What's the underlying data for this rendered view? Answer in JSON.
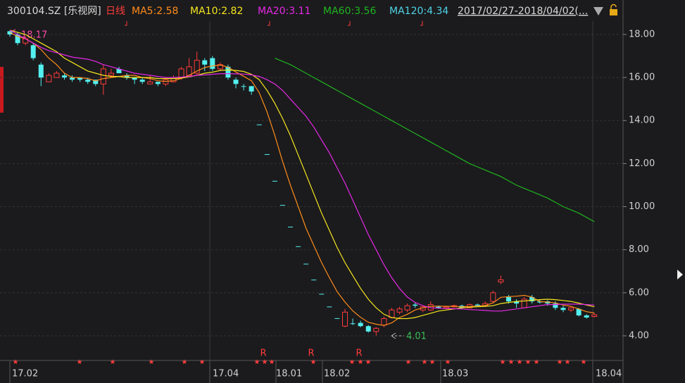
{
  "header": {
    "symbol": "300104.SZ [乐视网]",
    "period": "日线",
    "range": "2017/02/27-2018/04/02(..."
  },
  "chart_data": {
    "type": "candlestick",
    "open": [
      18.15,
      18.0,
      17.6,
      17.5,
      16.6,
      15.8,
      16.0,
      16.1,
      16.0,
      16.0,
      15.9,
      15.9,
      15.7,
      16.1,
      16.4,
      16.1,
      16.0,
      15.9,
      15.7,
      15.8,
      15.7,
      15.8,
      16.0,
      16.1,
      16.2,
      16.8,
      16.9,
      16.4,
      16.5,
      15.9,
      15.6,
      15.6,
      13.82,
      12.44,
      11.2,
      10.08,
      9.07,
      8.16,
      7.35,
      6.61,
      5.95,
      5.36,
      4.82,
      4.45,
      4.58,
      4.6,
      4.45,
      4.2,
      4.5,
      4.85,
      5.1,
      5.2,
      5.45,
      5.2,
      5.2,
      5.35,
      5.3,
      5.35,
      5.4,
      5.3,
      5.45,
      5.4,
      5.6,
      6.5,
      5.8,
      5.6,
      5.3,
      5.8,
      5.6,
      5.6,
      5.5,
      5.3,
      5.2,
      5.25,
      4.95,
      4.9
    ],
    "high": [
      18.17,
      18.1,
      17.9,
      17.6,
      16.7,
      16.2,
      16.3,
      16.2,
      16.1,
      16.0,
      16.0,
      15.9,
      16.6,
      16.4,
      16.5,
      16.2,
      16.0,
      16.0,
      16.1,
      15.8,
      16.0,
      16.1,
      16.5,
      16.9,
      17.2,
      16.9,
      17.0,
      16.7,
      16.6,
      16.0,
      15.7,
      15.6,
      13.82,
      12.44,
      11.2,
      10.08,
      9.07,
      8.16,
      7.35,
      6.61,
      5.95,
      5.36,
      4.82,
      5.25,
      4.8,
      4.7,
      4.5,
      4.4,
      4.9,
      5.3,
      5.35,
      5.5,
      5.55,
      5.4,
      5.6,
      5.4,
      5.4,
      5.45,
      5.45,
      5.5,
      5.5,
      5.6,
      6.1,
      6.8,
      5.9,
      5.7,
      5.8,
      5.9,
      5.7,
      5.65,
      5.6,
      5.4,
      5.35,
      5.3,
      5.0,
      5.05
    ],
    "low": [
      17.9,
      17.5,
      17.5,
      16.8,
      15.6,
      15.8,
      16.0,
      15.9,
      15.8,
      15.8,
      15.7,
      15.6,
      15.2,
      16.0,
      16.2,
      15.9,
      15.7,
      15.7,
      15.7,
      15.6,
      15.6,
      15.8,
      15.9,
      16.1,
      16.1,
      16.3,
      16.3,
      16.3,
      15.9,
      15.5,
      15.4,
      15.2,
      13.82,
      12.44,
      11.2,
      10.08,
      9.07,
      8.16,
      7.35,
      6.61,
      5.95,
      5.36,
      4.82,
      4.4,
      4.5,
      4.4,
      4.15,
      4.01,
      4.4,
      4.8,
      5.0,
      5.1,
      5.3,
      5.1,
      5.15,
      5.25,
      5.25,
      5.3,
      5.25,
      5.3,
      5.35,
      5.35,
      5.55,
      6.4,
      5.5,
      5.3,
      5.3,
      5.5,
      5.5,
      5.4,
      5.2,
      5.1,
      5.1,
      4.9,
      4.8,
      4.85
    ],
    "close": [
      18.0,
      17.6,
      17.8,
      16.9,
      16.0,
      16.1,
      16.2,
      16.0,
      15.9,
      15.9,
      15.8,
      15.7,
      16.4,
      16.2,
      16.2,
      16.0,
      15.9,
      15.8,
      15.8,
      15.7,
      15.9,
      16.0,
      16.4,
      16.5,
      16.8,
      16.6,
      16.4,
      16.6,
      16.0,
      15.7,
      15.6,
      15.35,
      13.82,
      12.44,
      11.2,
      10.08,
      9.07,
      8.16,
      7.35,
      6.61,
      5.95,
      5.36,
      4.82,
      5.1,
      4.58,
      4.45,
      4.2,
      4.35,
      4.8,
      5.2,
      5.25,
      5.4,
      5.4,
      5.35,
      5.45,
      5.3,
      5.35,
      5.4,
      5.3,
      5.45,
      5.4,
      5.5,
      6.0,
      6.6,
      5.6,
      5.5,
      5.7,
      5.6,
      5.55,
      5.5,
      5.3,
      5.2,
      5.3,
      4.95,
      4.85,
      4.98
    ],
    "up_color": "#ff3b3b",
    "down_color": "#54f0f0",
    "series": [
      {
        "name": "MA5:2.58",
        "color": "#ff8c1a",
        "values": [
          18.1,
          17.9,
          17.8,
          17.6,
          17.3,
          16.9,
          16.6,
          16.2,
          16.0,
          16.0,
          15.95,
          15.85,
          15.95,
          16.0,
          16.05,
          16.1,
          16.1,
          16.0,
          15.95,
          15.85,
          15.82,
          15.85,
          15.96,
          16.1,
          16.3,
          16.46,
          16.54,
          16.58,
          16.48,
          16.26,
          16.06,
          15.85,
          15.3,
          14.4,
          13.3,
          12.1,
          11.0,
          10.0,
          9.0,
          8.2,
          7.4,
          6.7,
          6.05,
          5.57,
          5.16,
          4.86,
          4.63,
          4.54,
          4.48,
          4.6,
          4.85,
          5.0,
          5.2,
          5.3,
          5.37,
          5.38,
          5.37,
          5.37,
          5.35,
          5.36,
          5.38,
          5.41,
          5.53,
          5.79,
          5.82,
          5.84,
          5.88,
          5.8,
          5.59,
          5.57,
          5.53,
          5.43,
          5.37,
          5.25,
          5.12,
          5.06
        ]
      },
      {
        "name": "MA10:2.82",
        "color": "#f5e61e",
        "values": [
          18.2,
          18.1,
          18.0,
          17.8,
          17.6,
          17.4,
          17.2,
          16.9,
          16.7,
          16.5,
          16.3,
          16.2,
          16.1,
          16.05,
          16.05,
          16.0,
          16.0,
          16.0,
          16.0,
          15.95,
          15.95,
          15.95,
          15.97,
          16.03,
          16.1,
          16.2,
          16.25,
          16.33,
          16.35,
          16.33,
          16.28,
          16.15,
          15.9,
          15.4,
          14.8,
          14.1,
          13.3,
          12.4,
          11.5,
          10.6,
          9.7,
          8.9,
          8.1,
          7.4,
          6.8,
          6.2,
          5.7,
          5.3,
          5.0,
          4.85,
          4.8,
          4.8,
          4.85,
          4.95,
          5.05,
          5.15,
          5.2,
          5.25,
          5.3,
          5.33,
          5.35,
          5.37,
          5.4,
          5.5,
          5.55,
          5.6,
          5.62,
          5.65,
          5.68,
          5.7,
          5.68,
          5.64,
          5.6,
          5.52,
          5.43,
          5.35
        ]
      },
      {
        "name": "MA20:3.11",
        "color": "#e628e6",
        "values": [
          18.2,
          18.0,
          17.8,
          17.6,
          17.4,
          17.25,
          17.15,
          17.05,
          16.95,
          16.9,
          16.85,
          16.75,
          16.6,
          16.5,
          16.4,
          16.3,
          16.2,
          16.15,
          16.1,
          16.05,
          16.0,
          16.0,
          16.02,
          16.05,
          16.1,
          16.12,
          16.15,
          16.18,
          16.18,
          16.17,
          16.16,
          16.12,
          16.05,
          15.9,
          15.7,
          15.4,
          15.0,
          14.6,
          14.2,
          13.7,
          13.1,
          12.5,
          11.8,
          11.1,
          10.3,
          9.5,
          8.7,
          8.0,
          7.3,
          6.7,
          6.2,
          5.8,
          5.55,
          5.4,
          5.3,
          5.28,
          5.27,
          5.26,
          5.25,
          5.22,
          5.2,
          5.18,
          5.15,
          5.15,
          5.2,
          5.25,
          5.3,
          5.35,
          5.4,
          5.45,
          5.45,
          5.47,
          5.47,
          5.47,
          5.45,
          5.43
        ]
      },
      {
        "name": "MA60:3.56",
        "color": "#1fb41f",
        "values": [
          null,
          null,
          null,
          null,
          null,
          null,
          null,
          null,
          null,
          null,
          null,
          null,
          null,
          null,
          null,
          null,
          null,
          null,
          null,
          null,
          null,
          null,
          null,
          null,
          null,
          null,
          null,
          null,
          null,
          null,
          null,
          null,
          null,
          null,
          16.9,
          16.75,
          16.6,
          16.4,
          16.2,
          16.0,
          15.8,
          15.6,
          15.4,
          15.2,
          15.0,
          14.8,
          14.6,
          14.4,
          14.2,
          14.0,
          13.8,
          13.6,
          13.4,
          13.2,
          13.0,
          12.8,
          12.6,
          12.4,
          12.2,
          12.0,
          11.85,
          11.7,
          11.55,
          11.4,
          11.2,
          11.0,
          10.85,
          10.7,
          10.55,
          10.4,
          10.2,
          10.0,
          9.85,
          9.7,
          9.5,
          9.3
        ]
      },
      {
        "name": "MA120:4.34",
        "color": "#4fd2e6",
        "values": []
      }
    ],
    "ylim": [
      2.92,
      18.62
    ],
    "yticks": [
      {
        "value": 4,
        "label": "4.00"
      },
      {
        "value": 6,
        "label": "6.00"
      },
      {
        "value": 8,
        "label": "8.00"
      },
      {
        "value": 10,
        "label": "10.00"
      },
      {
        "value": 12,
        "label": "12.00"
      },
      {
        "value": 14,
        "label": "14.00"
      },
      {
        "value": 16,
        "label": "16.00"
      },
      {
        "value": 18,
        "label": "18.00"
      }
    ],
    "xtick_labels": [
      "17.02",
      "17.04",
      "18.01",
      "18.02",
      "18.03",
      "18.04"
    ],
    "annotations": [
      "18.17",
      "4.01"
    ],
    "signals": [
      "R",
      "R",
      "R"
    ],
    "grid": true
  }
}
